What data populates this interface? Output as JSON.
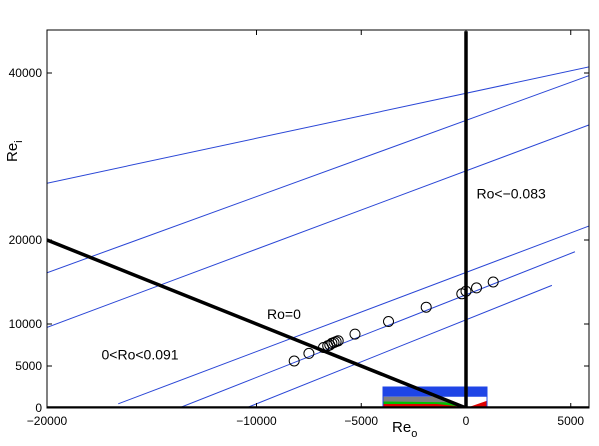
{
  "chart_data": {
    "type": "scatter",
    "title": "",
    "xlabel": {
      "main": "Re",
      "sub": "o"
    },
    "ylabel": {
      "main": "Re",
      "sub": "i"
    },
    "xlim": [
      -20000,
      6000
    ],
    "ylim": [
      0,
      45000
    ],
    "x_ticks": [
      -20000,
      -10000,
      -5000,
      0,
      5000
    ],
    "y_ticks": [
      0,
      5000,
      10000,
      20000,
      40000
    ],
    "x_tick_labels": [
      "−20000",
      "−10000",
      "−5000",
      "0",
      "5000"
    ],
    "y_tick_labels": [
      "0",
      "5000",
      "10000",
      "20000",
      "40000"
    ],
    "grid": false,
    "thick_lines": [
      {
        "name": "ro-zero-line",
        "points": [
          [
            -20000,
            20000
          ],
          [
            0,
            0
          ]
        ]
      },
      {
        "name": "ro-limit-line",
        "points": [
          [
            0,
            0
          ],
          [
            0,
            45000
          ]
        ]
      }
    ],
    "blue_lines": [
      [
        [
          -20000,
          26800
        ],
        [
          6000,
          40800
        ]
      ],
      [
        [
          -20000,
          16100
        ],
        [
          6000,
          39800
        ]
      ],
      [
        [
          -20000,
          9600
        ],
        [
          6000,
          33900
        ]
      ],
      [
        [
          -16600,
          500
        ],
        [
          6000,
          21800
        ]
      ],
      [
        [
          -13700,
          0
        ],
        [
          5200,
          18600
        ]
      ],
      [
        [
          -10500,
          0
        ],
        [
          4100,
          14600
        ]
      ]
    ],
    "series": [
      {
        "marker": "circle",
        "x": [
          -8200,
          -7500,
          -6800,
          -6600,
          -6500,
          -6400,
          -6300,
          -6200,
          -6100,
          -5300,
          -3700,
          -1900,
          -200,
          0,
          500,
          1300
        ],
        "y": [
          5600,
          6500,
          7200,
          7400,
          7500,
          7700,
          7800,
          7900,
          8000,
          8800,
          10300,
          12000,
          13600,
          13900,
          14300,
          15000
        ]
      }
    ],
    "annotations": [
      {
        "name": "ro-zero-label",
        "text": "Ro=0",
        "x": -9500,
        "y": 10600
      },
      {
        "name": "ro-range-label",
        "text": "0<Ro<0.091",
        "x": -17400,
        "y": 5800
      },
      {
        "name": "ro-negative-label",
        "text": "Ro<−0.083",
        "x": 500,
        "y": 25000
      }
    ],
    "inset": {
      "x_range": [
        -4000,
        1000
      ],
      "y_range": [
        0,
        2600
      ],
      "regions": [
        {
          "color": "#1f45e6",
          "polygon": [
            [
              -4000,
              1400
            ],
            [
              1000,
              1400
            ],
            [
              1000,
              2600
            ],
            [
              -4000,
              2600
            ]
          ]
        },
        {
          "color": "#808080",
          "polygon": [
            [
              -4000,
              600
            ],
            [
              -4000,
              1400
            ],
            [
              -1200,
              1400
            ],
            [
              0,
              200
            ]
          ]
        },
        {
          "color": "#00c000",
          "polygon": [
            [
              -4000,
              500
            ],
            [
              -4000,
              800
            ],
            [
              -1000,
              700
            ],
            [
              0,
              200
            ]
          ]
        },
        {
          "color": "#e00000",
          "polygon": [
            [
              -4000,
              0
            ],
            [
              -4000,
              500
            ],
            [
              -1400,
              500
            ],
            [
              0,
              100
            ],
            [
              0,
              0
            ]
          ]
        },
        {
          "color": "#e00000",
          "polygon": [
            [
              0,
              0
            ],
            [
              1000,
              900
            ],
            [
              1000,
              0
            ]
          ]
        }
      ]
    }
  }
}
